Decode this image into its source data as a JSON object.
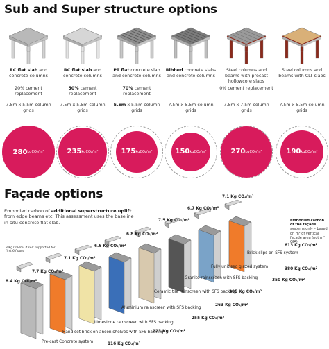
{
  "headings": {
    "sub_super": "Sub and Super structure options",
    "facade": "Façade options"
  },
  "structure_options": [
    {
      "bold": "RC flat slab",
      "rest": " and concrete columns",
      "replacement_pre": "",
      "replacement_bold": "",
      "replacement_rest": "20% cement replacement",
      "grid_bold": "",
      "grid_rest": "7.5m x 5.5m column grids",
      "value": "280",
      "unit": "kgCO₂/m²",
      "frac": 1.0
    },
    {
      "bold": "RC flat slab",
      "rest": " and concrete columns",
      "replacement_pre": "",
      "replacement_bold": "50%",
      "replacement_rest": " cement replacement",
      "grid_bold": "",
      "grid_rest": "7.5m x 5.5m column grids",
      "value": "235",
      "unit": "kgCO₂/m²",
      "frac": 0.84
    },
    {
      "bold": "PT flat",
      "rest": " concrete slab and concrete columns",
      "replacement_pre": "",
      "replacement_bold": "70%",
      "replacement_rest": " cement replacement",
      "grid_bold": "5.5m",
      "grid_rest": " x 5.5m column grids",
      "value": "175",
      "unit": "kgCO₂/m²",
      "frac": 0.625
    },
    {
      "bold": "Ribbed",
      "rest": " concrete slabs and concrete columns",
      "replacement_pre": "",
      "replacement_bold": "",
      "replacement_rest": "",
      "grid_bold": "",
      "grid_rest": "7.5m x 5.5m column grids",
      "value": "150",
      "unit": "kgCO₂/m²",
      "frac": 0.536
    },
    {
      "bold": "",
      "rest": "Steel columns and beams with precast hollowcore slabs",
      "replacement_pre": "",
      "replacement_bold": "",
      "replacement_rest": "0% cement replacement",
      "grid_bold": "",
      "grid_rest": "7.5m x 7.5m column grids",
      "value": "270",
      "unit": "kgCO₂/m²",
      "frac": 0.964
    },
    {
      "bold": "",
      "rest": "Steel columns and beams with CLT slabs",
      "replacement_pre": "",
      "replacement_bold": "",
      "replacement_rest": "",
      "grid_bold": "",
      "grid_rest": "7.5m x 5.5m column grids",
      "value": "190",
      "unit": "kgCO₂/m²",
      "frac": 0.68
    }
  ],
  "facade_intro": {
    "pre": "Embodied carbon of ",
    "bold": "additional superstructure uplift",
    "post": " from edge beams etc. This assessment uses the baseline in situ concrete flat slab."
  },
  "facade_note": {
    "bold": "Embodied carbon of the façade",
    "rest": " systems only – based on m² of vertical façade area (not m² GIA)"
  },
  "small_note": "8 Kg CO₂/m² if self supported for first 6 floors",
  "facade_systems": [
    {
      "name": "Pre-cast Concrete system",
      "value": "116 Kg CO₂/m²",
      "uplift": "8.4 Kg CO₂/m²"
    },
    {
      "name": "Hand set brick on ancon shelves with SFS backing",
      "value": "223 Kg CO₂/m²",
      "uplift": "7.7 Kg CO₂/m²"
    },
    {
      "name": "Limestone rainscreen with SFS backing",
      "value": "255 Kg CO₂/m²",
      "uplift": "7.1 Kg CO₂/m²"
    },
    {
      "name": "Aluminium rainscreen with SFS backing",
      "value": "263 Kg CO₂/m²",
      "uplift": "6.6 Kg CO₂/m²"
    },
    {
      "name": "Ceramic tile rainscreen with SFS backing",
      "value": "305 Kg CO₂/m²",
      "uplift": "6.8 Kg CO₂/m²"
    },
    {
      "name": "Granite rainscreen with SFS backing",
      "value": "350 Kg CO₂/m²",
      "uplift": "7.5 Kg CO₂/m²"
    },
    {
      "name": "Fully unitised glazed system",
      "value": "380 Kg CO₂/m²",
      "uplift": "6.7 Kg CO₂/m²"
    },
    {
      "name": "Brick slips on SFS system",
      "value": "613 Kg CO₂/m²",
      "uplift": "7.1 Kg CO₂/m²"
    }
  ],
  "colors": {
    "circle": "#d81b5c",
    "accent_yellow": "#f2c12e",
    "accent_orange": "#f07b2a"
  }
}
